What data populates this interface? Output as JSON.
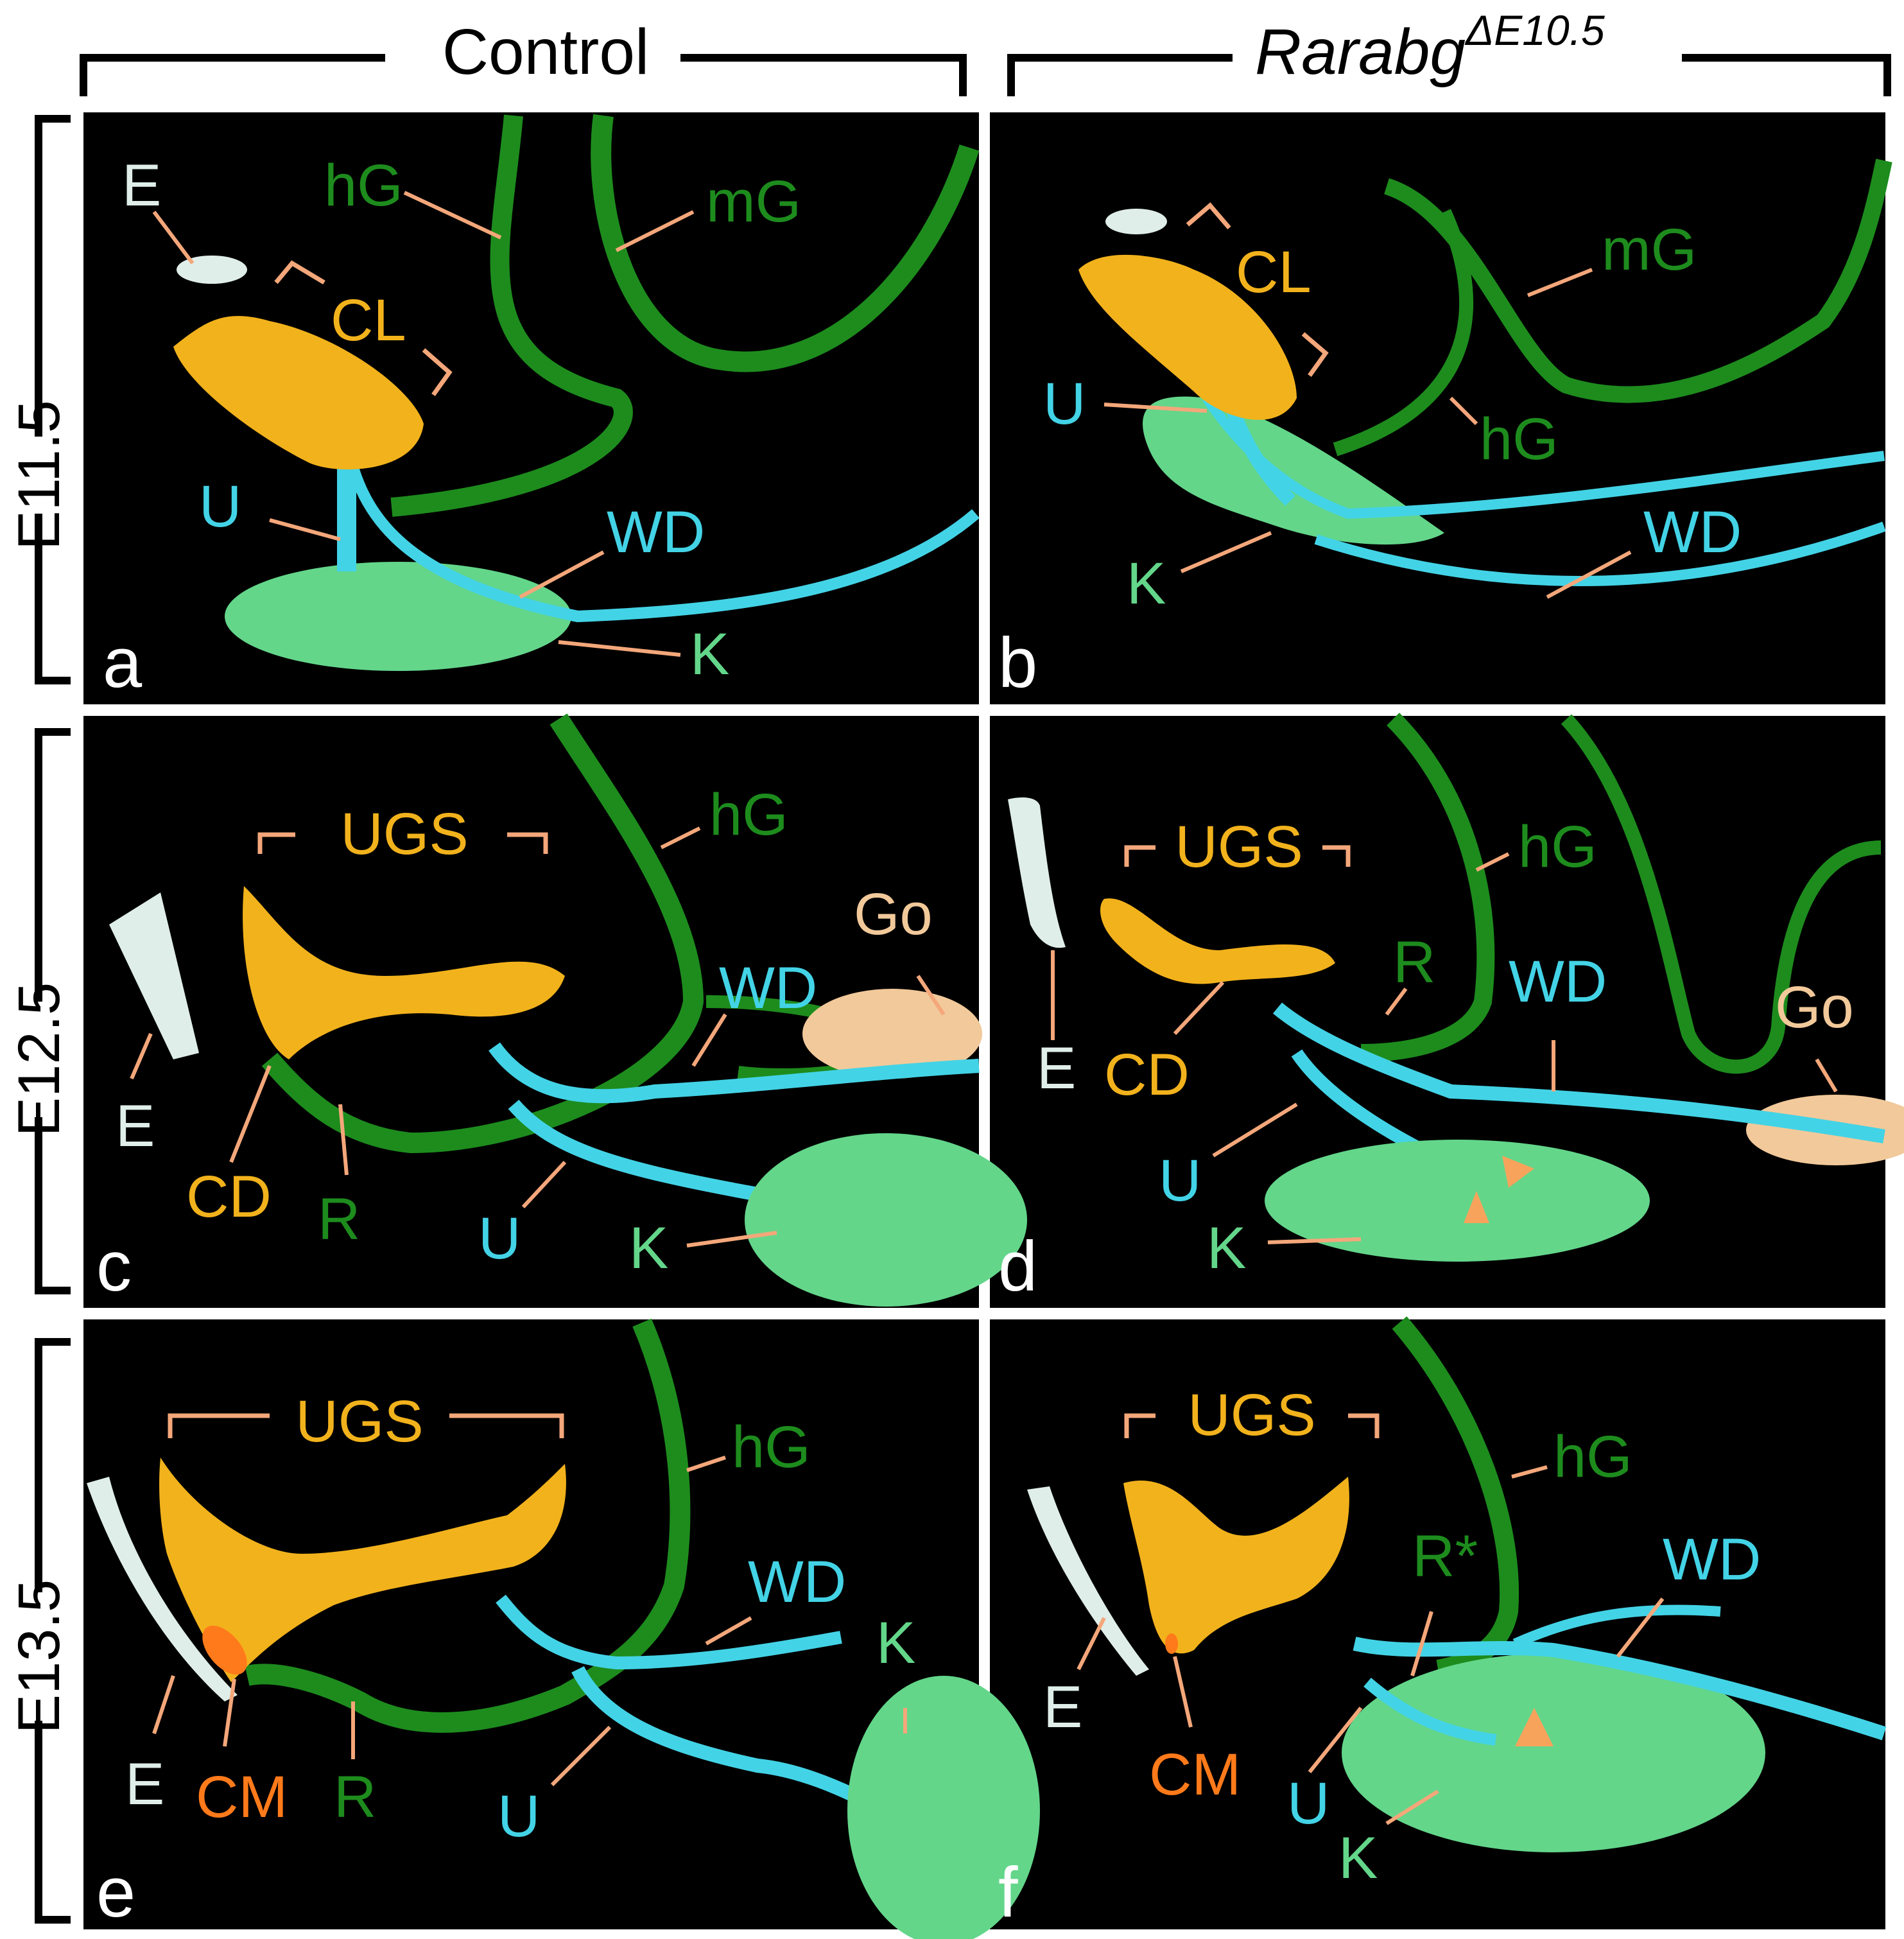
{
  "columns": {
    "left": "Control",
    "right_main": "Rarabg",
    "right_sup": "ΔE10.5"
  },
  "rows": [
    "E11.5",
    "E12.5",
    "E13.5"
  ],
  "colors": {
    "wd": "#43d3e6",
    "gut": "#1d8c1d",
    "kidney": "#63d68a",
    "ugs": "#f2b21c",
    "gonad": "#f2c99a",
    "ectoderm": "#dfeee9",
    "cm": "#ff7a1a",
    "leader": "#f4a77a",
    "arrowhead": "#f7a35c"
  },
  "panels": {
    "a": {
      "letter": "a",
      "E": "E",
      "hG": "hG",
      "mG": "mG",
      "CL": "CL",
      "U": "U",
      "WD": "WD",
      "K": "K"
    },
    "b": {
      "letter": "b",
      "CL": "CL",
      "mG": "mG",
      "U": "U",
      "hG": "hG",
      "WD": "WD",
      "K": "K"
    },
    "c": {
      "letter": "c",
      "UGS": "UGS",
      "hG": "hG",
      "Go": "Go",
      "WD": "WD",
      "E": "E",
      "CD": "CD",
      "R": "R",
      "U": "U",
      "K": "K"
    },
    "d": {
      "letter": "d",
      "UGS": "UGS",
      "hG": "hG",
      "R": "R",
      "WD": "WD",
      "Go": "Go",
      "E": "E",
      "CD": "CD",
      "U": "U",
      "K": "K"
    },
    "e": {
      "letter": "e",
      "UGS": "UGS",
      "hG": "hG",
      "WD": "WD",
      "K": "K",
      "E": "E",
      "CM": "CM",
      "R": "R",
      "U": "U"
    },
    "f": {
      "letter": "f",
      "UGS": "UGS",
      "hG": "hG",
      "Rstar": "R*",
      "WD": "WD",
      "E": "E",
      "CM": "CM",
      "U": "U",
      "K": "K"
    }
  }
}
